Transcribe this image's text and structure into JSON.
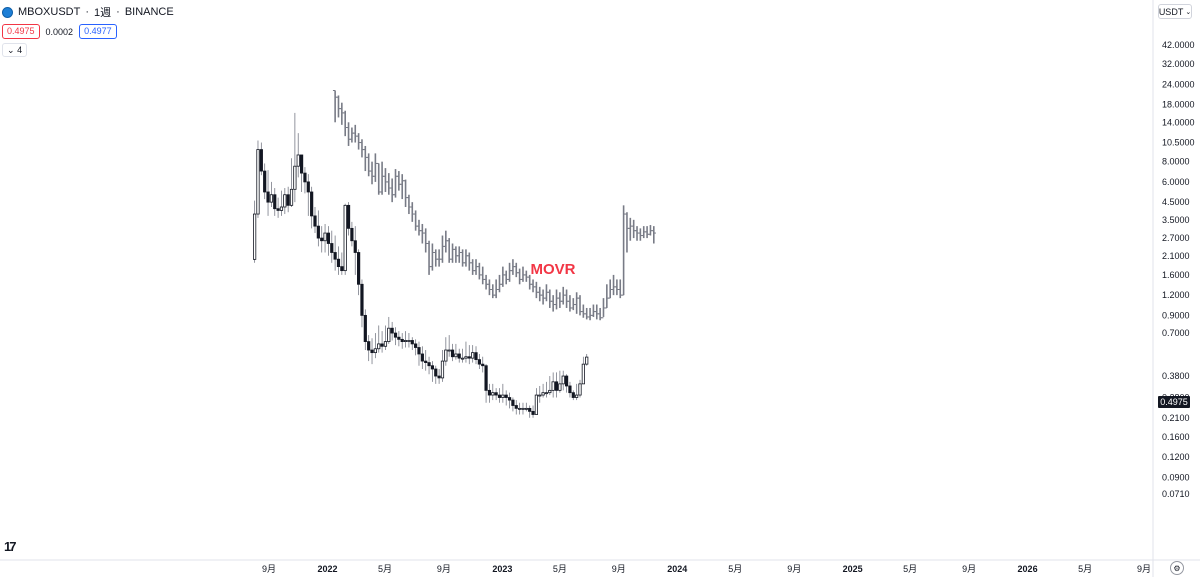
{
  "header": {
    "symbol": "MBOXUSDT",
    "interval": "1週",
    "exchange": "BINANCE",
    "separator": "·",
    "logo_icon": "mbox-logo-icon"
  },
  "quote": {
    "bid": "0.4975",
    "spread": "0.0002",
    "ask": "0.4977"
  },
  "indicators_toggle": {
    "label": "4",
    "icon": "chevron-down-icon"
  },
  "currency": {
    "label": "USDT",
    "icon": "chevron-down-icon"
  },
  "last_price_label": "0.4975",
  "branding": {
    "logo": "17",
    "icon": "tradingview-logo-icon"
  },
  "settings_icon": "gear-icon",
  "colors": {
    "up": "#131722",
    "down": "#131722",
    "overlay": "#787b86",
    "annotation": "#f23645",
    "bid": "#f23645",
    "ask": "#2962ff"
  },
  "chart_data": {
    "type": "candlestick",
    "scale": "log",
    "y_ticks": [
      "42.0000",
      "32.0000",
      "24.0000",
      "18.0000",
      "14.0000",
      "10.5000",
      "8.0000",
      "6.0000",
      "4.5000",
      "3.5000",
      "2.7000",
      "2.1000",
      "1.6000",
      "1.2000",
      "0.9000",
      "0.7000",
      "0.4975",
      "0.3800",
      "0.2800",
      "0.2100",
      "0.1600",
      "0.1200",
      "0.0900",
      "0.0710"
    ],
    "x_ticks": [
      {
        "label": "9月",
        "date": "2021-09"
      },
      {
        "label": "2022",
        "date": "2022-01"
      },
      {
        "label": "5月",
        "date": "2022-05"
      },
      {
        "label": "9月",
        "date": "2022-09"
      },
      {
        "label": "2023",
        "date": "2023-01"
      },
      {
        "label": "5月",
        "date": "2023-05"
      },
      {
        "label": "9月",
        "date": "2023-09"
      },
      {
        "label": "2024",
        "date": "2024-01"
      },
      {
        "label": "5月",
        "date": "2024-05"
      },
      {
        "label": "9月",
        "date": "2024-09"
      },
      {
        "label": "2025",
        "date": "2025-01"
      },
      {
        "label": "5月",
        "date": "2025-05"
      },
      {
        "label": "9月",
        "date": "2025-09"
      },
      {
        "label": "2026",
        "date": "2026-01"
      },
      {
        "label": "5月",
        "date": "2026-05"
      },
      {
        "label": "9月",
        "date": "2026-09"
      }
    ],
    "annotation": "MOVR",
    "series": [
      {
        "name": "MBOXUSDT",
        "style": "candles",
        "start": "2021-08-02",
        "close": [
          3.8,
          9.5,
          7.0,
          5.2,
          4.5,
          5.0,
          4.1,
          4.0,
          4.2,
          5.0,
          4.3,
          5.4,
          7.5,
          8.8,
          6.8,
          6.0,
          5.2,
          3.7,
          3.2,
          2.7,
          2.6,
          2.9,
          2.5,
          2.2,
          2.0,
          1.8,
          1.7,
          4.3,
          3.1,
          2.6,
          2.2,
          1.4,
          0.9,
          0.62,
          0.55,
          0.53,
          0.56,
          0.6,
          0.58,
          0.62,
          0.75,
          0.7,
          0.66,
          0.64,
          0.62,
          0.63,
          0.63,
          0.6,
          0.57,
          0.52,
          0.47,
          0.46,
          0.44,
          0.42,
          0.38,
          0.37,
          0.47,
          0.55,
          0.55,
          0.5,
          0.52,
          0.49,
          0.49,
          0.5,
          0.49,
          0.53,
          0.48,
          0.45,
          0.44,
          0.31,
          0.29,
          0.3,
          0.29,
          0.28,
          0.29,
          0.28,
          0.27,
          0.25,
          0.24,
          0.24,
          0.24,
          0.24,
          0.23,
          0.22,
          0.29,
          0.29,
          0.3,
          0.3,
          0.31,
          0.35,
          0.31,
          0.34,
          0.38,
          0.33,
          0.3,
          0.28,
          0.29,
          0.34,
          0.45,
          0.4975
        ],
        "high": [
          4.6,
          10.8,
          10.5,
          7.8,
          7.1,
          6.0,
          5.5,
          4.8,
          5.3,
          5.5,
          5.6,
          8.4,
          16.0,
          12.0,
          8.7,
          7.4,
          6.7,
          5.6,
          4.2,
          4.0,
          3.2,
          3.3,
          3.2,
          3.0,
          2.8,
          2.4,
          2.2,
          4.4,
          4.5,
          3.4,
          3.2,
          2.3,
          1.5,
          0.98,
          0.68,
          0.65,
          0.7,
          0.78,
          0.72,
          0.78,
          0.88,
          0.82,
          0.76,
          0.72,
          0.7,
          0.72,
          0.7,
          0.66,
          0.64,
          0.62,
          0.58,
          0.55,
          0.5,
          0.47,
          0.44,
          0.42,
          0.55,
          0.66,
          0.68,
          0.6,
          0.6,
          0.56,
          0.56,
          0.62,
          0.59,
          0.59,
          0.58,
          0.52,
          0.5,
          0.45,
          0.34,
          0.34,
          0.32,
          0.32,
          0.34,
          0.31,
          0.3,
          0.28,
          0.27,
          0.26,
          0.26,
          0.26,
          0.25,
          0.25,
          0.32,
          0.33,
          0.34,
          0.35,
          0.38,
          0.4,
          0.4,
          0.41,
          0.41,
          0.39,
          0.35,
          0.31,
          0.34,
          0.36,
          0.5,
          0.52
        ],
        "low": [
          1.9,
          3.6,
          6.6,
          4.7,
          3.7,
          4.2,
          3.7,
          3.6,
          3.7,
          3.8,
          3.9,
          4.2,
          4.5,
          6.4,
          5.2,
          5.1,
          3.7,
          3.1,
          2.9,
          2.4,
          2.2,
          2.2,
          2.1,
          1.9,
          1.7,
          1.6,
          1.6,
          1.6,
          2.8,
          2.4,
          1.6,
          1.2,
          0.76,
          0.55,
          0.47,
          0.45,
          0.49,
          0.53,
          0.53,
          0.55,
          0.6,
          0.63,
          0.59,
          0.58,
          0.56,
          0.57,
          0.57,
          0.55,
          0.51,
          0.44,
          0.42,
          0.41,
          0.39,
          0.35,
          0.34,
          0.34,
          0.35,
          0.44,
          0.5,
          0.47,
          0.48,
          0.46,
          0.46,
          0.46,
          0.45,
          0.46,
          0.45,
          0.42,
          0.4,
          0.26,
          0.26,
          0.27,
          0.27,
          0.26,
          0.26,
          0.25,
          0.24,
          0.23,
          0.22,
          0.22,
          0.22,
          0.23,
          0.21,
          0.21,
          0.22,
          0.26,
          0.28,
          0.28,
          0.29,
          0.28,
          0.28,
          0.3,
          0.31,
          0.3,
          0.28,
          0.27,
          0.27,
          0.28,
          0.34,
          0.44
        ]
      },
      {
        "name": "MOVR",
        "style": "bars",
        "start": "2022-01-17",
        "close": [
          20.0,
          17.0,
          16.0,
          13.0,
          11.0,
          12.0,
          11.5,
          10.5,
          9.5,
          8.5,
          7.0,
          6.5,
          7.8,
          5.2,
          6.5,
          6.0,
          5.5,
          5.0,
          6.5,
          5.8,
          6.1,
          4.8,
          4.2,
          3.8,
          3.2,
          3.0,
          2.9,
          2.5,
          1.8,
          2.2,
          2.0,
          2.0,
          2.4,
          2.6,
          2.0,
          2.3,
          2.1,
          2.2,
          1.9,
          2.1,
          1.9,
          1.7,
          1.8,
          1.6,
          1.5,
          1.4,
          1.3,
          1.2,
          1.3,
          1.4,
          1.6,
          1.5,
          1.7,
          1.8,
          1.65,
          1.5,
          1.6,
          1.55,
          1.4,
          1.35,
          1.25,
          1.2,
          1.15,
          1.25,
          1.1,
          1.05,
          1.15,
          1.1,
          1.2,
          1.1,
          1.0,
          1.05,
          1.15,
          0.95,
          0.92,
          0.88,
          0.9,
          0.95,
          0.92,
          0.87,
          1.0,
          1.15,
          1.3,
          1.35,
          1.3,
          1.2,
          3.8,
          3.1,
          3.2,
          3.0,
          2.9,
          2.8,
          2.95,
          2.85,
          3.0,
          2.9
        ],
        "high": [
          22.0,
          20.5,
          18.5,
          16.5,
          14.0,
          13.0,
          13.5,
          12.0,
          11.0,
          10.0,
          9.0,
          8.0,
          9.0,
          7.8,
          8.0,
          7.3,
          6.8,
          6.3,
          7.2,
          7.0,
          6.7,
          6.2,
          5.0,
          4.5,
          4.0,
          3.5,
          3.3,
          3.1,
          2.6,
          2.5,
          2.3,
          2.3,
          2.8,
          3.0,
          2.7,
          2.5,
          2.4,
          2.4,
          2.3,
          2.3,
          2.2,
          2.0,
          2.0,
          1.9,
          1.8,
          1.6,
          1.5,
          1.4,
          1.5,
          1.6,
          1.8,
          1.7,
          1.9,
          2.0,
          1.9,
          1.75,
          1.8,
          1.7,
          1.6,
          1.5,
          1.45,
          1.35,
          1.3,
          1.4,
          1.3,
          1.2,
          1.3,
          1.25,
          1.35,
          1.3,
          1.2,
          1.15,
          1.25,
          1.2,
          1.05,
          1.0,
          1.0,
          1.05,
          1.05,
          1.0,
          1.15,
          1.4,
          1.5,
          1.6,
          1.5,
          1.5,
          4.3,
          3.9,
          3.6,
          3.5,
          3.2,
          3.1,
          3.2,
          3.2,
          3.25,
          3.2
        ],
        "low": [
          14.0,
          15.0,
          13.5,
          11.5,
          10.0,
          10.5,
          10.5,
          9.5,
          8.5,
          7.0,
          6.5,
          5.8,
          6.0,
          5.0,
          5.0,
          5.2,
          5.0,
          4.5,
          4.8,
          5.3,
          4.7,
          4.2,
          3.8,
          3.4,
          3.0,
          2.8,
          2.5,
          2.2,
          1.6,
          1.7,
          1.8,
          1.8,
          1.9,
          2.2,
          1.9,
          1.9,
          1.9,
          1.9,
          1.8,
          1.8,
          1.7,
          1.6,
          1.6,
          1.5,
          1.4,
          1.3,
          1.2,
          1.15,
          1.15,
          1.25,
          1.35,
          1.4,
          1.45,
          1.6,
          1.55,
          1.4,
          1.45,
          1.45,
          1.3,
          1.25,
          1.15,
          1.1,
          1.05,
          1.1,
          1.0,
          0.95,
          0.98,
          1.0,
          1.05,
          1.0,
          0.95,
          0.97,
          0.92,
          0.9,
          0.87,
          0.85,
          0.84,
          0.88,
          0.85,
          0.84,
          0.88,
          1.0,
          1.15,
          1.2,
          1.2,
          1.15,
          1.2,
          2.2,
          2.6,
          2.7,
          2.6,
          2.6,
          2.7,
          2.7,
          2.8,
          2.5
        ]
      }
    ]
  }
}
